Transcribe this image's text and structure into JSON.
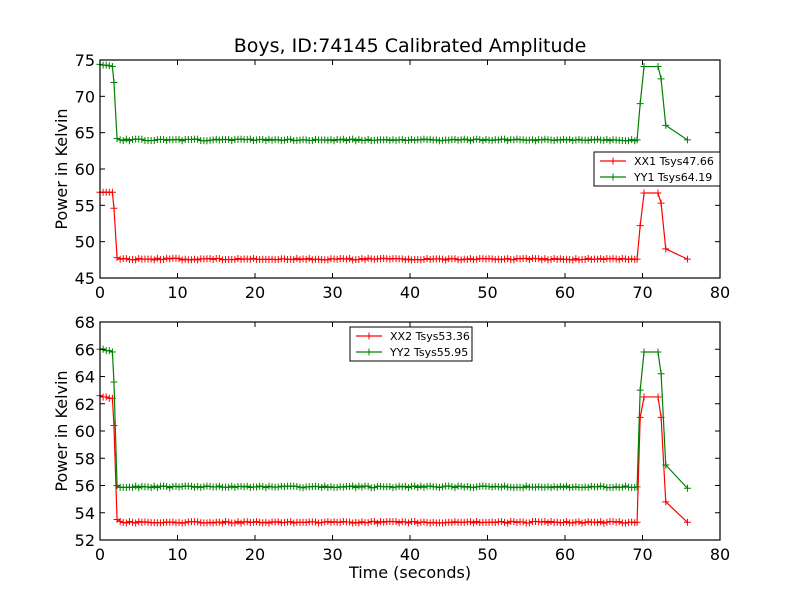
{
  "figure_title": "Boys, ID:74145 Calibrated Amplitude",
  "chart_data": [
    {
      "type": "line",
      "title": "Boys, ID:74145 Calibrated Amplitude",
      "xlabel": "",
      "ylabel": "Power in Kelvin",
      "xlim": [
        0,
        80
      ],
      "ylim": [
        45,
        75
      ],
      "xticks": [
        0,
        10,
        20,
        30,
        40,
        50,
        60,
        70,
        80
      ],
      "yticks": [
        45,
        50,
        55,
        60,
        65,
        70,
        75
      ],
      "grid": false,
      "legend_position": "right",
      "series": [
        {
          "name": "XX1 Tsys47.66",
          "color": "#ff0000",
          "marker": "+",
          "segments": [
            {
              "x0": 0.0,
              "x1": 1.8,
              "y": 56.8
            },
            {
              "x0": 2.2,
              "x1": 69.3,
              "y": 47.6
            },
            {
              "x0": 70.2,
              "x1": 72.0,
              "y": 56.7
            },
            {
              "x0": 73.0,
              "x1": 75.8,
              "y": 47.6
            }
          ],
          "x": [
            0.0,
            0.4,
            0.8,
            1.2,
            1.6,
            1.8,
            2.2,
            69.3,
            69.7,
            70.2,
            72.0,
            72.4,
            73.0,
            75.8
          ],
          "values": [
            56.8,
            56.8,
            56.8,
            56.8,
            56.8,
            54.6,
            47.8,
            47.6,
            52.2,
            56.7,
            56.7,
            55.3,
            49.0,
            47.6
          ]
        },
        {
          "name": "YY1 Tsys64.19",
          "color": "#008000",
          "marker": "+",
          "segments": [
            {
              "x0": 0.0,
              "x1": 1.8,
              "y": 74.3
            },
            {
              "x0": 2.2,
              "x1": 69.3,
              "y": 64.0
            },
            {
              "x0": 70.2,
              "x1": 72.0,
              "y": 74.1
            },
            {
              "x0": 73.0,
              "x1": 75.8,
              "y": 64.0
            }
          ],
          "x": [
            0.0,
            0.4,
            0.8,
            1.2,
            1.6,
            1.8,
            2.2,
            69.3,
            69.7,
            70.2,
            72.0,
            72.4,
            73.0,
            75.8
          ],
          "values": [
            74.4,
            74.3,
            74.3,
            74.2,
            74.1,
            71.9,
            64.2,
            64.0,
            69.0,
            74.1,
            74.1,
            72.4,
            66.0,
            64.0
          ]
        }
      ]
    },
    {
      "type": "line",
      "title": "",
      "xlabel": "Time (seconds)",
      "ylabel": "Power in Kelvin",
      "xlim": [
        0,
        80
      ],
      "ylim": [
        52,
        68
      ],
      "xticks": [
        0,
        10,
        20,
        30,
        40,
        50,
        60,
        70,
        80
      ],
      "yticks": [
        52,
        54,
        56,
        58,
        60,
        62,
        64,
        66,
        68
      ],
      "grid": false,
      "legend_position": "upper center",
      "series": [
        {
          "name": "XX2 Tsys53.36",
          "color": "#ff0000",
          "marker": "+",
          "segments": [
            {
              "x0": 0.0,
              "x1": 1.8,
              "y": 62.5
            },
            {
              "x0": 2.2,
              "x1": 69.3,
              "y": 53.3
            },
            {
              "x0": 70.2,
              "x1": 72.0,
              "y": 62.5
            },
            {
              "x0": 73.0,
              "x1": 75.8,
              "y": 53.3
            }
          ],
          "x": [
            0.0,
            0.4,
            0.8,
            1.2,
            1.6,
            1.8,
            2.2,
            69.3,
            69.7,
            70.2,
            72.0,
            72.4,
            73.0,
            75.8
          ],
          "values": [
            62.6,
            62.5,
            62.5,
            62.4,
            62.4,
            60.4,
            53.5,
            53.3,
            61.0,
            62.5,
            62.5,
            61.0,
            54.8,
            53.3
          ]
        },
        {
          "name": "YY2 Tsys55.95",
          "color": "#008000",
          "marker": "+",
          "segments": [
            {
              "x0": 0.0,
              "x1": 1.8,
              "y": 66.0
            },
            {
              "x0": 2.2,
              "x1": 69.3,
              "y": 55.9
            },
            {
              "x0": 70.2,
              "x1": 72.0,
              "y": 65.8
            },
            {
              "x0": 73.0,
              "x1": 75.8,
              "y": 55.8
            }
          ],
          "x": [
            0.0,
            0.4,
            0.8,
            1.2,
            1.6,
            1.8,
            2.2,
            69.3,
            69.7,
            70.2,
            72.0,
            72.4,
            73.0,
            75.8
          ],
          "values": [
            66.0,
            66.0,
            65.9,
            65.9,
            65.8,
            63.6,
            56.0,
            55.9,
            63.0,
            65.8,
            65.8,
            64.2,
            57.5,
            55.8
          ]
        }
      ]
    }
  ]
}
